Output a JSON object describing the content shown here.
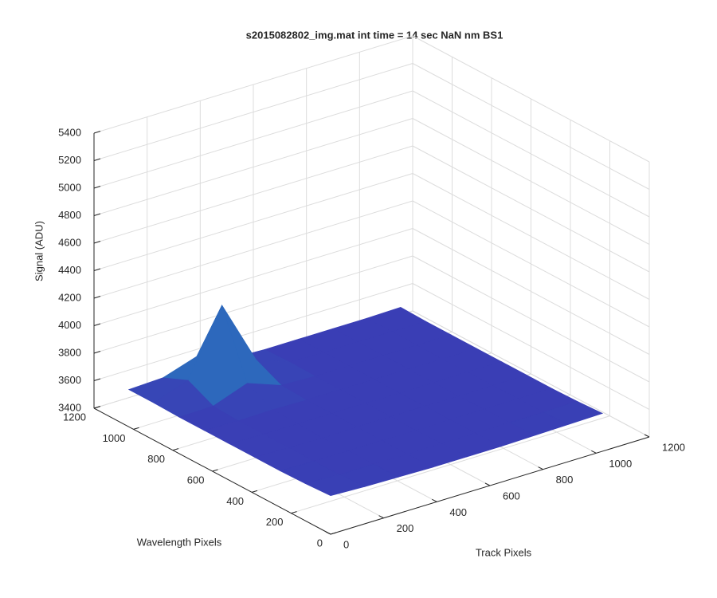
{
  "chart_data": {
    "type": "surface3d",
    "title": "s2015082802_img.mat int time = 14 sec  NaN nm BS1",
    "xlabel": "Track Pixels",
    "ylabel": "Wavelength Pixels",
    "zlabel": "Signal (ADU)",
    "xlim": [
      0,
      1200
    ],
    "xticks": [
      0,
      200,
      400,
      600,
      800,
      1000,
      1200
    ],
    "ylim": [
      0,
      1200
    ],
    "yticks": [
      0,
      200,
      400,
      600,
      800,
      1000,
      1200
    ],
    "zlim": [
      3400,
      5400
    ],
    "zticks": [
      3400,
      3600,
      3800,
      4000,
      4200,
      4400,
      4600,
      4800,
      5000,
      5200,
      5400
    ],
    "grid": true,
    "x": [
      0,
      128,
      256,
      384,
      512,
      640,
      768,
      896,
      1024
    ],
    "y": [
      0,
      128,
      256,
      384,
      512,
      640,
      768,
      896,
      1024
    ],
    "z": [
      [
        3680,
        3670,
        3665,
        3660,
        3660,
        3660,
        3665,
        3670,
        3675
      ],
      [
        3670,
        3660,
        3660,
        3655,
        3660,
        3660,
        3660,
        3660,
        3665
      ],
      [
        3665,
        3660,
        3660,
        3660,
        3655,
        3660,
        3660,
        3660,
        3660
      ],
      [
        3665,
        3660,
        3655,
        3660,
        3660,
        3660,
        3655,
        3660,
        3660
      ],
      [
        3665,
        3660,
        3660,
        3660,
        3660,
        3655,
        3660,
        3660,
        3660
      ],
      [
        3665,
        3660,
        3665,
        3660,
        3660,
        3660,
        3660,
        3655,
        3660
      ],
      [
        3665,
        3670,
        3760,
        3670,
        3660,
        3660,
        3660,
        3660,
        3660
      ],
      [
        3670,
        3760,
        4230,
        3760,
        3665,
        3660,
        3660,
        3660,
        3660
      ],
      [
        3670,
        3680,
        3760,
        3670,
        3660,
        3660,
        3660,
        3660,
        3665
      ]
    ],
    "colormap": [
      "#3a3db5",
      "#16b8c8"
    ]
  }
}
